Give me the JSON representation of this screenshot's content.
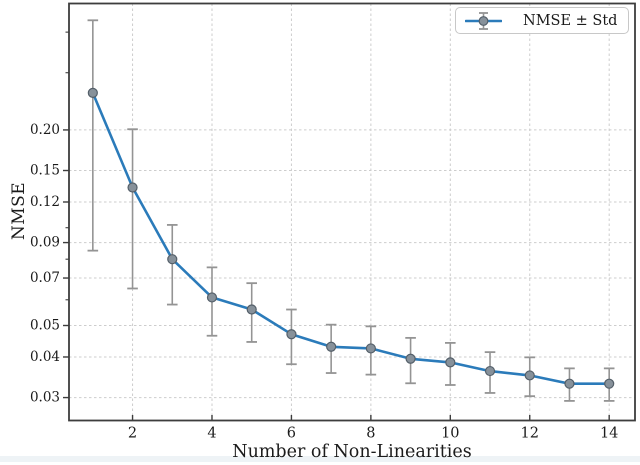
{
  "chart_data": {
    "type": "line",
    "title": "",
    "xlabel": "Number of Non-Linearities",
    "ylabel": "NMSE",
    "legend_label": "NMSE ± Std",
    "legend_position": "upper right",
    "x": [
      1,
      2,
      3,
      4,
      5,
      6,
      7,
      8,
      9,
      10,
      11,
      12,
      13,
      14
    ],
    "series": [
      {
        "name": "NMSE",
        "values": [
          0.26,
          0.133,
          0.08,
          0.061,
          0.056,
          0.047,
          0.043,
          0.0425,
          0.0395,
          0.0385,
          0.0362,
          0.0351,
          0.0331,
          0.0331
        ],
        "std": [
          0.175,
          0.068,
          0.022,
          0.0145,
          0.0115,
          0.009,
          0.0073,
          0.0072,
          0.0063,
          0.0057,
          0.0052,
          0.0048,
          0.0038,
          0.0038
        ]
      }
    ],
    "xlim": [
      0.4,
      14.65
    ],
    "ylim": [
      0.0255,
      0.49
    ],
    "yscale": "log",
    "xscale": "linear",
    "grid": true,
    "grid_style": "dashed",
    "x_tick_values": [
      2,
      4,
      6,
      8,
      10,
      12,
      14
    ],
    "x_tick_labels": [
      "2",
      "4",
      "6",
      "8",
      "10",
      "12",
      "14"
    ],
    "y_tick_values": [
      0.2,
      0.15,
      0.12,
      0.09,
      0.07,
      0.05,
      0.04,
      0.03
    ],
    "y_tick_labels": [
      "0.20",
      "0.15",
      "0.12",
      "0.09",
      "0.07",
      "0.05",
      "0.04",
      "0.03"
    ],
    "y_minor_tick_values": [
      0.4,
      0.3,
      0.1,
      0.08,
      0.06
    ],
    "colors": {
      "line": "#2b7bba",
      "marker_fill": "#87919a",
      "marker_edge": "#545f69",
      "error_bar": "#949494",
      "grid": "#cdcdcd",
      "spine": "#3d3d3d",
      "text": "#1b1b1b",
      "legend_border": "#c8c8c8"
    }
  }
}
